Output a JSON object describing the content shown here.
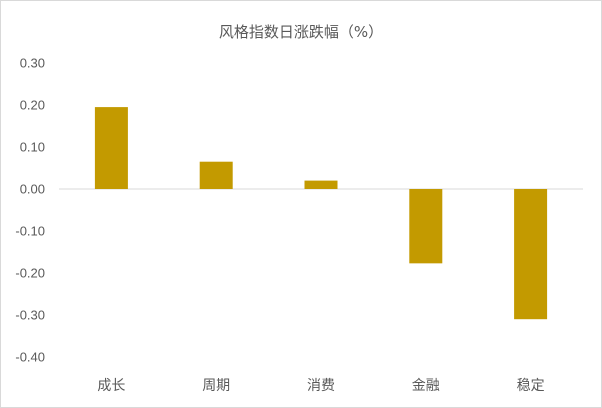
{
  "chart_data": {
    "type": "bar",
    "title": "风格指数日涨跌幅（%）",
    "categories": [
      "成长",
      "周期",
      "消费",
      "金融",
      "稳定"
    ],
    "series": [
      {
        "values": [
          0.195,
          0.065,
          0.02,
          -0.177,
          -0.31
        ]
      }
    ],
    "ylim": [
      -0.4,
      0.3
    ],
    "yticks": [
      "0.30",
      "0.20",
      "0.10",
      "0.00",
      "-0.10",
      "-0.20",
      "-0.30",
      "-0.40"
    ],
    "xlabel": "",
    "ylabel": "",
    "grid": false,
    "legend": "none",
    "bar_color": "#C39A00",
    "axis_color": "#D9D9D9",
    "text_color": "#595959"
  }
}
